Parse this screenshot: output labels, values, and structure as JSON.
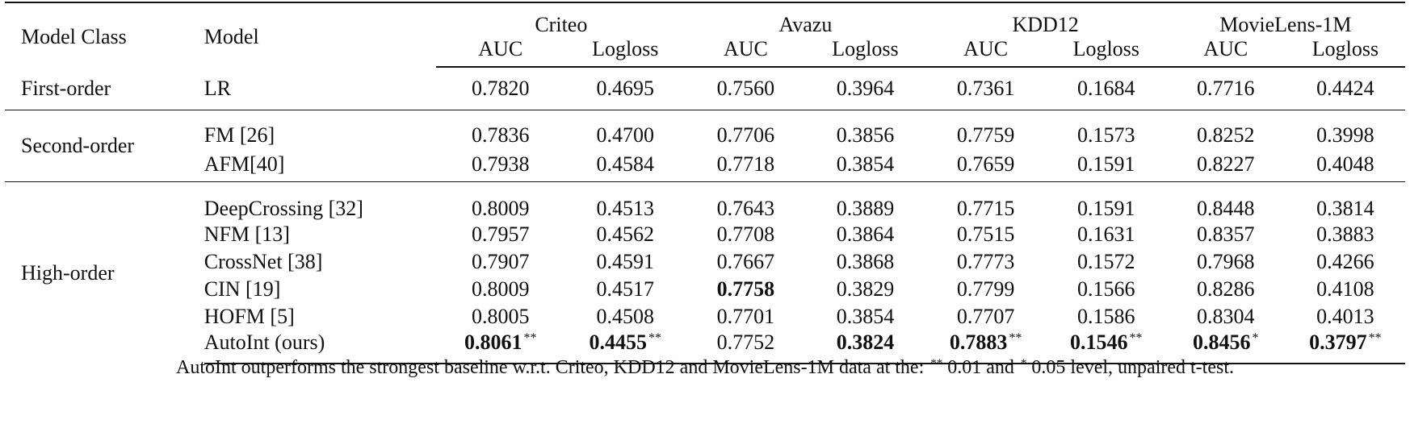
{
  "header": {
    "model_class": "Model Class",
    "model": "Model",
    "datasets": [
      "Criteo",
      "Avazu",
      "KDD12",
      "MovieLens-1M"
    ],
    "metrics": [
      "AUC",
      "Logloss",
      "AUC",
      "Logloss",
      "AUC",
      "Logloss",
      "AUC",
      "Logloss"
    ]
  },
  "groups": [
    {
      "class": "First-order",
      "rows": [
        {
          "model": "LR",
          "values": [
            "0.7820",
            "0.4695",
            "0.7560",
            "0.3964",
            "0.7361",
            "0.1684",
            "0.7716",
            "0.4424"
          ]
        }
      ]
    },
    {
      "class": "Second-order",
      "rows": [
        {
          "model": "FM [26]",
          "values": [
            "0.7836",
            "0.4700",
            "0.7706",
            "0.3856",
            "0.7759",
            "0.1573",
            "0.8252",
            "0.3998"
          ]
        },
        {
          "model": "AFM[40]",
          "values": [
            "0.7938",
            "0.4584",
            "0.7718",
            "0.3854",
            "0.7659",
            "0.1591",
            "0.8227",
            "0.4048"
          ]
        }
      ]
    },
    {
      "class": "High-order",
      "rows": [
        {
          "model": "DeepCrossing [32]",
          "values": [
            "0.8009",
            "0.4513",
            "0.7643",
            "0.3889",
            "0.7715",
            "0.1591",
            "0.8448",
            "0.3814"
          ]
        },
        {
          "model": "NFM [13]",
          "values": [
            "0.7957",
            "0.4562",
            "0.7708",
            "0.3864",
            "0.7515",
            "0.1631",
            "0.8357",
            "0.3883"
          ]
        },
        {
          "model": "CrossNet [38]",
          "values": [
            "0.7907",
            "0.4591",
            "0.7667",
            "0.3868",
            "0.7773",
            "0.1572",
            "0.7968",
            "0.4266"
          ]
        },
        {
          "model": "CIN [19]",
          "values": [
            "0.8009",
            "0.4517",
            "0.7758",
            "0.3829",
            "0.7799",
            "0.1566",
            "0.8286",
            "0.4108"
          ]
        },
        {
          "model": "HOFM [5]",
          "values": [
            "0.8005",
            "0.4508",
            "0.7701",
            "0.3854",
            "0.7707",
            "0.1586",
            "0.8304",
            "0.4013"
          ]
        },
        {
          "model": "AutoInt (ours)",
          "values": [
            "0.8061",
            "0.4455",
            "0.7752",
            "0.3824",
            "0.7883",
            "0.1546",
            "0.8456",
            "0.3797"
          ],
          "marks": [
            "**",
            "**",
            "",
            "",
            "**",
            "**",
            "*",
            "**"
          ]
        }
      ]
    }
  ],
  "caption": {
    "before": "AutoInt outperforms the strongest baseline w.r.t. Criteo, KDD12 and MovieLens-1M data at the: ",
    "mark1": "**",
    "middle": " 0.01 and ",
    "mark2": "*",
    "after": " 0.05 level, unpaired t-test."
  }
}
